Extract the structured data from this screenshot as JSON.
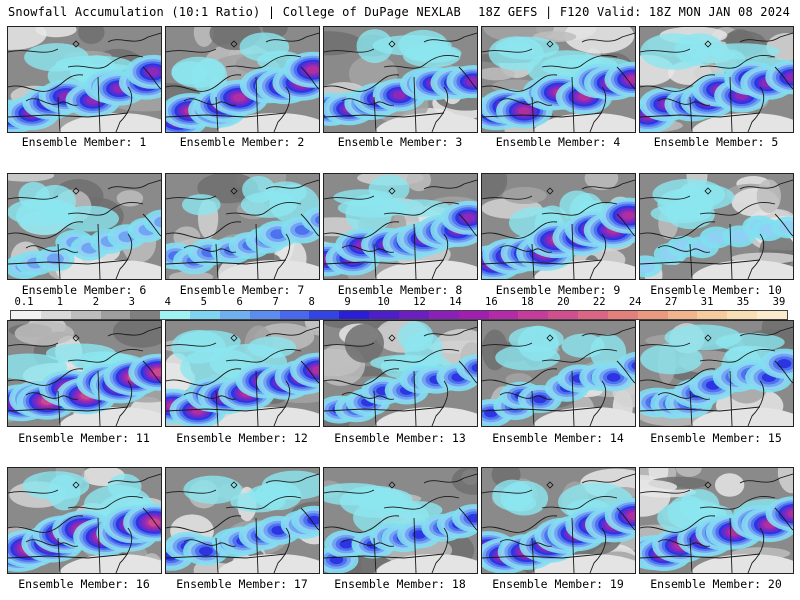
{
  "header": {
    "title": "Snowfall Accumulation (10:1 Ratio) | College of DuPage NEXLAB",
    "run_info": "18Z GEFS | F120 Valid: 18Z MON JAN 08 2024"
  },
  "members": [
    {
      "label": "Ensemble Member: 1",
      "intensity": 0.8
    },
    {
      "label": "Ensemble Member: 2",
      "intensity": 0.9
    },
    {
      "label": "Ensemble Member: 3",
      "intensity": 0.75
    },
    {
      "label": "Ensemble Member: 4",
      "intensity": 0.85
    },
    {
      "label": "Ensemble Member: 5",
      "intensity": 0.8
    },
    {
      "label": "Ensemble Member: 6",
      "intensity": 0.35
    },
    {
      "label": "Ensemble Member: 7",
      "intensity": 0.45
    },
    {
      "label": "Ensemble Member: 8",
      "intensity": 0.8
    },
    {
      "label": "Ensemble Member: 9",
      "intensity": 0.9
    },
    {
      "label": "Ensemble Member: 10",
      "intensity": 0.2
    },
    {
      "label": "Ensemble Member: 11",
      "intensity": 0.95
    },
    {
      "label": "Ensemble Member: 12",
      "intensity": 0.85
    },
    {
      "label": "Ensemble Member: 13",
      "intensity": 0.5
    },
    {
      "label": "Ensemble Member: 14",
      "intensity": 0.5
    },
    {
      "label": "Ensemble Member: 15",
      "intensity": 0.6
    },
    {
      "label": "Ensemble Member: 16",
      "intensity": 1.0
    },
    {
      "label": "Ensemble Member: 17",
      "intensity": 0.55
    },
    {
      "label": "Ensemble Member: 18",
      "intensity": 0.5
    },
    {
      "label": "Ensemble Member: 19",
      "intensity": 0.9
    },
    {
      "label": "Ensemble Member: 20",
      "intensity": 0.85
    }
  ],
  "colorbar": {
    "ticks": [
      "0.1",
      "1",
      "2",
      "3",
      "4",
      "5",
      "6",
      "7",
      "8",
      "9",
      "10",
      "12",
      "14",
      "16",
      "18",
      "20",
      "22",
      "24",
      "27",
      "31",
      "35",
      "39"
    ],
    "colors": [
      "#f2f2f2",
      "#d9d9d9",
      "#bdbdbd",
      "#9e9e9e",
      "#7f7f7f",
      "#9ff2f2",
      "#7fd4f2",
      "#6eb0f2",
      "#5a8cf2",
      "#4768ef",
      "#3344e6",
      "#2a1fd6",
      "#4c1fc8",
      "#6b1fc0",
      "#8a20b8",
      "#a01fb0",
      "#b52aa8",
      "#c63b9c",
      "#d24f8f",
      "#dc6584",
      "#e47f7c",
      "#eb9a80",
      "#f1b48c",
      "#f6cc9e",
      "#f9dfb4",
      "#fbeccd"
    ]
  }
}
